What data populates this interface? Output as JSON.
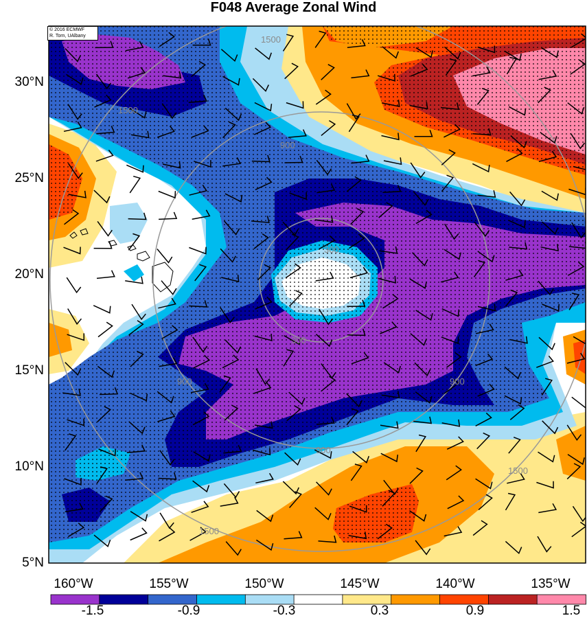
{
  "title": "F048 Average Zonal Wind",
  "copyright": {
    "line1": "© 2016 ECMWF",
    "line2": "R. Torn, UAlbany"
  },
  "lat_labels": [
    "30°N",
    "25°N",
    "20°N",
    "15°N",
    "10°N",
    "5°N"
  ],
  "lon_labels": [
    "160°W",
    "155°W",
    "150°W",
    "145°W",
    "140°W",
    "135°W"
  ],
  "colorbar": {
    "labels": [
      "-1.5",
      "-0.9",
      "-0.3",
      "0.3",
      "0.9",
      "1.5"
    ],
    "colors": [
      "#9933cc",
      "#000099",
      "#3366cc",
      "#00bbee",
      "#aaddf5",
      "#ffffff",
      "#ffe88a",
      "#ff9900",
      "#ff4400",
      "#bb2222",
      "#ff88aa"
    ]
  },
  "range_rings": {
    "labels": [
      "300",
      "900",
      "1500"
    ]
  },
  "map_colors": {
    "purple": "#9933cc",
    "navy": "#000099",
    "blue": "#3366cc",
    "cyan": "#00bbee",
    "lightblue": "#aaddf5",
    "white": "#ffffff",
    "yellow": "#ffe88a",
    "orange": "#ff9900",
    "redorange": "#ff4400",
    "darkred": "#bb2222",
    "pink": "#ff88aa"
  }
}
